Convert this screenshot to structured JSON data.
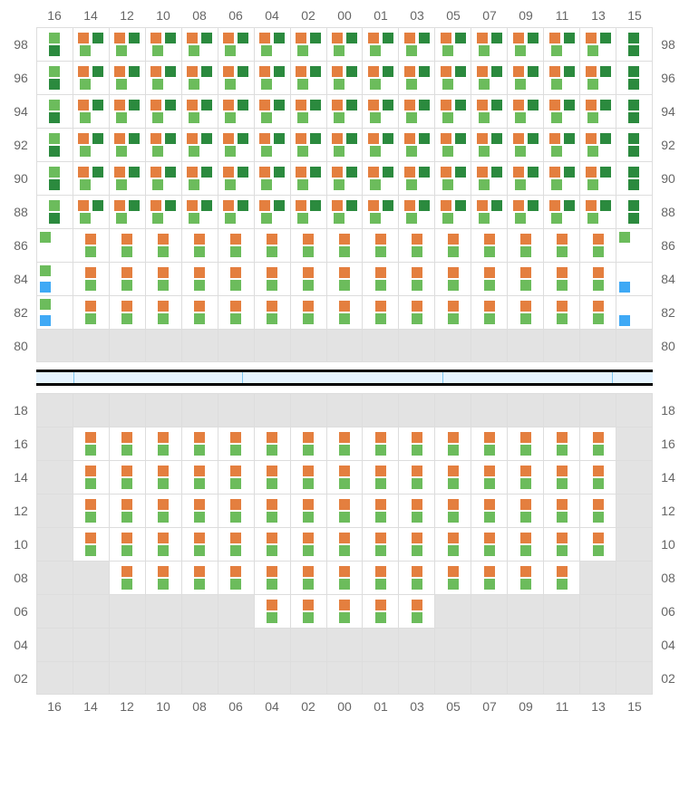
{
  "layout": {
    "cols": [
      "16",
      "14",
      "12",
      "10",
      "08",
      "06",
      "04",
      "02",
      "00",
      "01",
      "03",
      "05",
      "07",
      "09",
      "11",
      "13",
      "15"
    ],
    "top_rows": [
      "98",
      "96",
      "94",
      "92",
      "90",
      "88",
      "86",
      "84",
      "82",
      "80"
    ],
    "bot_rows": [
      "18",
      "16",
      "14",
      "12",
      "10",
      "08",
      "06",
      "04",
      "02"
    ]
  },
  "colors": {
    "orange": "#e47f3f",
    "light_green": "#6cbc5c",
    "dark_green": "#2b8a3e",
    "blue": "#3fa9f5",
    "empty_bg": "#e3e3e3",
    "break_fill": "#e6f4ff",
    "break_sep": "#7fc7ef"
  },
  "cell_types": {
    "A": {
      "shape": "quad",
      "tl": "orange",
      "tr": "dark_green",
      "bl": "light_green",
      "br": null
    },
    "Aend": {
      "shape": "pair_v",
      "c1": "dark_green",
      "c2": "dark_green"
    },
    "Aendg": {
      "shape": "pair_v",
      "c1": "light_green",
      "c2": "dark_green"
    },
    "B": {
      "shape": "stack2",
      "c1": "orange",
      "c2": "light_green"
    },
    "Bd": {
      "shape": "stack2",
      "c1": "dark_green",
      "c2": "dark_green"
    },
    "Bdg": {
      "shape": "stack2",
      "c1": "light_green",
      "c2": "dark_green"
    },
    "CL": {
      "shape": "tl_bl",
      "tl": "light_green",
      "bl": "blue"
    },
    "CLg": {
      "shape": "tl_bl",
      "tl": "light_green",
      "bl": "light_green"
    },
    "CLt": {
      "shape": "tl",
      "tl": "light_green"
    },
    "DR": {
      "shape": "bl",
      "bl": "blue"
    },
    "E": {
      "shape": "empty"
    }
  },
  "top_grid": [
    [
      "Aendg",
      "A",
      "A",
      "A",
      "A",
      "A",
      "A",
      "A",
      "A",
      "A",
      "A",
      "A",
      "A",
      "A",
      "A",
      "A",
      "Aend"
    ],
    [
      "Aendg",
      "A",
      "A",
      "A",
      "A",
      "A",
      "A",
      "A",
      "A",
      "A",
      "A",
      "A",
      "A",
      "A",
      "A",
      "A",
      "Aend"
    ],
    [
      "Aendg",
      "A",
      "A",
      "A",
      "A",
      "A",
      "A",
      "A",
      "A",
      "A",
      "A",
      "A",
      "A",
      "A",
      "A",
      "A",
      "Aend"
    ],
    [
      "Aendg",
      "A",
      "A",
      "A",
      "A",
      "A",
      "A",
      "A",
      "A",
      "A",
      "A",
      "A",
      "A",
      "A",
      "A",
      "A",
      "Aend"
    ],
    [
      "Aendg",
      "A",
      "A",
      "A",
      "A",
      "A",
      "A",
      "A",
      "A",
      "A",
      "A",
      "A",
      "A",
      "A",
      "A",
      "A",
      "Aend"
    ],
    [
      "Aendg",
      "A",
      "A",
      "A",
      "A",
      "A",
      "A",
      "A",
      "A",
      "A",
      "A",
      "A",
      "A",
      "A",
      "A",
      "A",
      "Aend"
    ],
    [
      "CLt",
      "B",
      "B",
      "B",
      "B",
      "B",
      "B",
      "B",
      "B",
      "B",
      "B",
      "B",
      "B",
      "B",
      "B",
      "B",
      "CLt"
    ],
    [
      "CL",
      "B",
      "B",
      "B",
      "B",
      "B",
      "B",
      "B",
      "B",
      "B",
      "B",
      "B",
      "B",
      "B",
      "B",
      "B",
      "DR"
    ],
    [
      "CL",
      "B",
      "B",
      "B",
      "B",
      "B",
      "B",
      "B",
      "B",
      "B",
      "B",
      "B",
      "B",
      "B",
      "B",
      "B",
      "DR"
    ],
    [
      "E",
      "E",
      "E",
      "E",
      "E",
      "E",
      "E",
      "E",
      "E",
      "E",
      "E",
      "E",
      "E",
      "E",
      "E",
      "E",
      "E"
    ]
  ],
  "bot_grid": [
    [
      "E",
      "E",
      "E",
      "E",
      "E",
      "E",
      "E",
      "E",
      "E",
      "E",
      "E",
      "E",
      "E",
      "E",
      "E",
      "E",
      "E"
    ],
    [
      "E",
      "B",
      "B",
      "B",
      "B",
      "B",
      "B",
      "B",
      "B",
      "B",
      "B",
      "B",
      "B",
      "B",
      "B",
      "B",
      "E"
    ],
    [
      "E",
      "B",
      "B",
      "B",
      "B",
      "B",
      "B",
      "B",
      "B",
      "B",
      "B",
      "B",
      "B",
      "B",
      "B",
      "B",
      "E"
    ],
    [
      "E",
      "B",
      "B",
      "B",
      "B",
      "B",
      "B",
      "B",
      "B",
      "B",
      "B",
      "B",
      "B",
      "B",
      "B",
      "B",
      "E"
    ],
    [
      "E",
      "B",
      "B",
      "B",
      "B",
      "B",
      "B",
      "B",
      "B",
      "B",
      "B",
      "B",
      "B",
      "B",
      "B",
      "B",
      "E"
    ],
    [
      "E",
      "E",
      "B",
      "B",
      "B",
      "B",
      "B",
      "B",
      "B",
      "B",
      "B",
      "B",
      "B",
      "B",
      "B",
      "E",
      "E"
    ],
    [
      "E",
      "E",
      "E",
      "E",
      "E",
      "E",
      "B",
      "B",
      "B",
      "B",
      "B",
      "E",
      "E",
      "E",
      "E",
      "E",
      "E"
    ],
    [
      "E",
      "E",
      "E",
      "E",
      "E",
      "E",
      "E",
      "E",
      "E",
      "E",
      "E",
      "E",
      "E",
      "E",
      "E",
      "E",
      "E"
    ],
    [
      "E",
      "E",
      "E",
      "E",
      "E",
      "E",
      "E",
      "E",
      "E",
      "E",
      "E",
      "E",
      "E",
      "E",
      "E",
      "E",
      "E"
    ]
  ],
  "break_segments": [
    6.0,
    27.5,
    32.5,
    27.5,
    6.5
  ]
}
